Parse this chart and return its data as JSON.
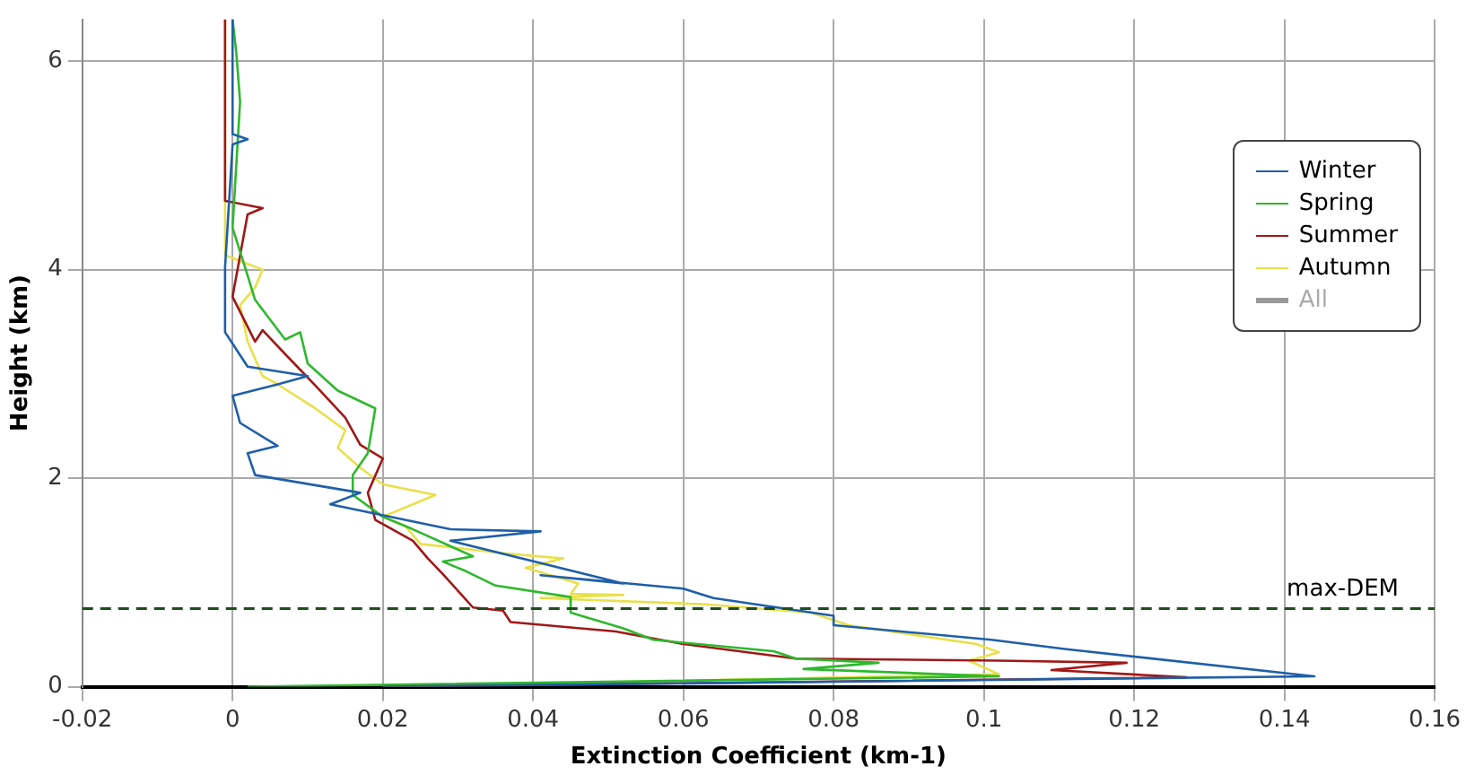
{
  "chart_data": {
    "type": "line",
    "xlabel": "Extinction Coefficient (km-1)",
    "ylabel": "Height (km)",
    "xlim": [
      -0.02,
      0.16
    ],
    "ylim": [
      0,
      6.4
    ],
    "xticks": [
      -0.02,
      0,
      0.02,
      0.04,
      0.06,
      0.08,
      0.1,
      0.12,
      0.14,
      0.16
    ],
    "yticks": [
      0,
      2,
      4,
      6
    ],
    "grid": true,
    "legend": "top right",
    "marker": "none",
    "ref_lines": [
      {
        "axis": "y",
        "value": 0.75,
        "label": "max-DEM",
        "color": "#1e4d1e",
        "line_style": "dashed"
      }
    ],
    "series": [
      {
        "name": "Winter",
        "color": "#1f5fa8",
        "x": [
          0.02,
          0.144,
          0.111,
          0.101,
          0.08,
          0.08,
          0.064,
          0.06,
          0.041,
          0.052,
          0.029,
          0.041,
          0.029,
          0.013,
          0.017,
          0.003,
          0.002,
          0.006,
          0.001,
          0,
          0.006,
          0.01,
          0.002,
          -0.001,
          -0.001,
          0,
          0.002,
          0,
          0
        ],
        "values": [
          0,
          0.1,
          0.36,
          0.45,
          0.59,
          0.68,
          0.85,
          0.94,
          1.07,
          0.99,
          1.4,
          1.49,
          1.51,
          1.75,
          1.86,
          2.03,
          2.24,
          2.31,
          2.53,
          2.79,
          2.9,
          2.98,
          3.07,
          3.4,
          4.02,
          5.2,
          5.25,
          5.3,
          6.4
        ]
      },
      {
        "name": "Spring",
        "color": "#2eb82e",
        "x": [
          0.002,
          0.102,
          0.076,
          0.086,
          0.075,
          0.072,
          0.056,
          0.052,
          0.045,
          0.045,
          0.035,
          0.031,
          0.028,
          0.032,
          0.024,
          0.02,
          0.016,
          0.016,
          0.018,
          0.019,
          0.014,
          0.01,
          0.009,
          0.007,
          0.003,
          0.0015,
          0,
          0.001,
          0.0005,
          0
        ],
        "values": [
          0,
          0.1,
          0.17,
          0.23,
          0.27,
          0.34,
          0.45,
          0.56,
          0.71,
          0.86,
          0.97,
          1.11,
          1.2,
          1.25,
          1.51,
          1.63,
          1.84,
          2.03,
          2.24,
          2.67,
          2.84,
          3.1,
          3.4,
          3.33,
          3.71,
          4.06,
          4.4,
          5.61,
          6.08,
          6.4
        ]
      },
      {
        "name": "Summer",
        "color": "#a01818",
        "x": [
          0.02,
          0.127,
          0.109,
          0.119,
          0.102,
          0.075,
          0.06,
          0.051,
          0.037,
          0.036,
          0.032,
          0.028,
          0.026,
          0.024,
          0.019,
          0.018,
          0.02,
          0.017,
          0.015,
          0.011,
          0.007,
          0.004,
          0.003,
          0,
          0.002,
          0.004,
          -0.001,
          -0.001
        ],
        "values": [
          0,
          0.09,
          0.16,
          0.23,
          0.25,
          0.27,
          0.41,
          0.53,
          0.62,
          0.73,
          0.76,
          1.08,
          1.23,
          1.4,
          1.6,
          1.86,
          2.19,
          2.32,
          2.58,
          2.89,
          3.19,
          3.42,
          3.31,
          3.74,
          4.53,
          4.59,
          4.66,
          6.4
        ]
      },
      {
        "name": "Autumn",
        "color": "#e8e04a",
        "x": [
          0.02,
          0.102,
          0.098,
          0.102,
          0.099,
          0.082,
          0.077,
          0.063,
          0.041,
          0.052,
          0.045,
          0.046,
          0.039,
          0.044,
          0.036,
          0.025,
          0.023,
          0.02,
          0.027,
          0.02,
          0.017,
          0.014,
          0.015,
          0.011,
          0.006,
          0.004,
          0.002,
          0.001,
          0.003,
          0.004,
          0,
          -0.001,
          -0.001
        ],
        "values": [
          0,
          0.12,
          0.25,
          0.33,
          0.41,
          0.59,
          0.71,
          0.79,
          0.85,
          0.88,
          0.89,
          0.99,
          1.14,
          1.23,
          1.28,
          1.37,
          1.54,
          1.63,
          1.84,
          1.94,
          2.1,
          2.29,
          2.46,
          2.67,
          2.9,
          2.98,
          3.31,
          3.66,
          3.83,
          4,
          4.11,
          4.14,
          6.4
        ]
      },
      {
        "name": "All",
        "color": "#999999"
      }
    ]
  }
}
